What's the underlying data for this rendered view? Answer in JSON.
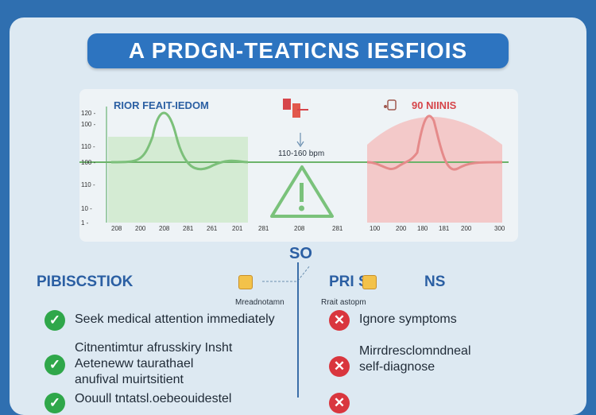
{
  "title": "A PRDGN-TEATICNS IESFIOIS",
  "chart": {
    "left_header": "RIOR FEAIT-IEDOM",
    "right_header": "90 NIINIS",
    "bpm_label": "110-160 bpm",
    "y_ticks": [
      "120 -",
      "100 -",
      "110 -",
      "100 -",
      "110 -",
      "10 -",
      "1 -"
    ],
    "x_ticks": [
      "208",
      "200",
      "208",
      "281",
      "261",
      "201",
      "281",
      "208",
      "281",
      "100",
      "200",
      "180",
      "181",
      "200",
      "300"
    ]
  },
  "so_label": "SO",
  "left_section": {
    "header": "PIBISCSTIOK",
    "items": [
      "Seek medical attention immediately",
      "Citnentimtur afrusskiry Insht\nAeteneww taurathael\nanufival muirtsitient",
      "Oouull tntatsl.oebeouidestel"
    ]
  },
  "middle": {
    "left_caption": "Mreadnotamn",
    "pills_label": "PRI S",
    "right_caption": "Rrait astopm"
  },
  "right_section": {
    "header": "NS",
    "items": [
      "Ignore symptoms",
      "Mirrdresclomndneal\nself-diagnose"
    ]
  },
  "colors": {
    "accent": "#2d74c0",
    "good": "#2fa74a",
    "bad": "#d9363e",
    "normal_fill": "#cfe8cf",
    "alarm_fill": "#f1c4c4"
  },
  "icons": [
    "warning-triangle-icon",
    "check-icon",
    "cross-icon",
    "hand-icon",
    "pill-icon"
  ]
}
